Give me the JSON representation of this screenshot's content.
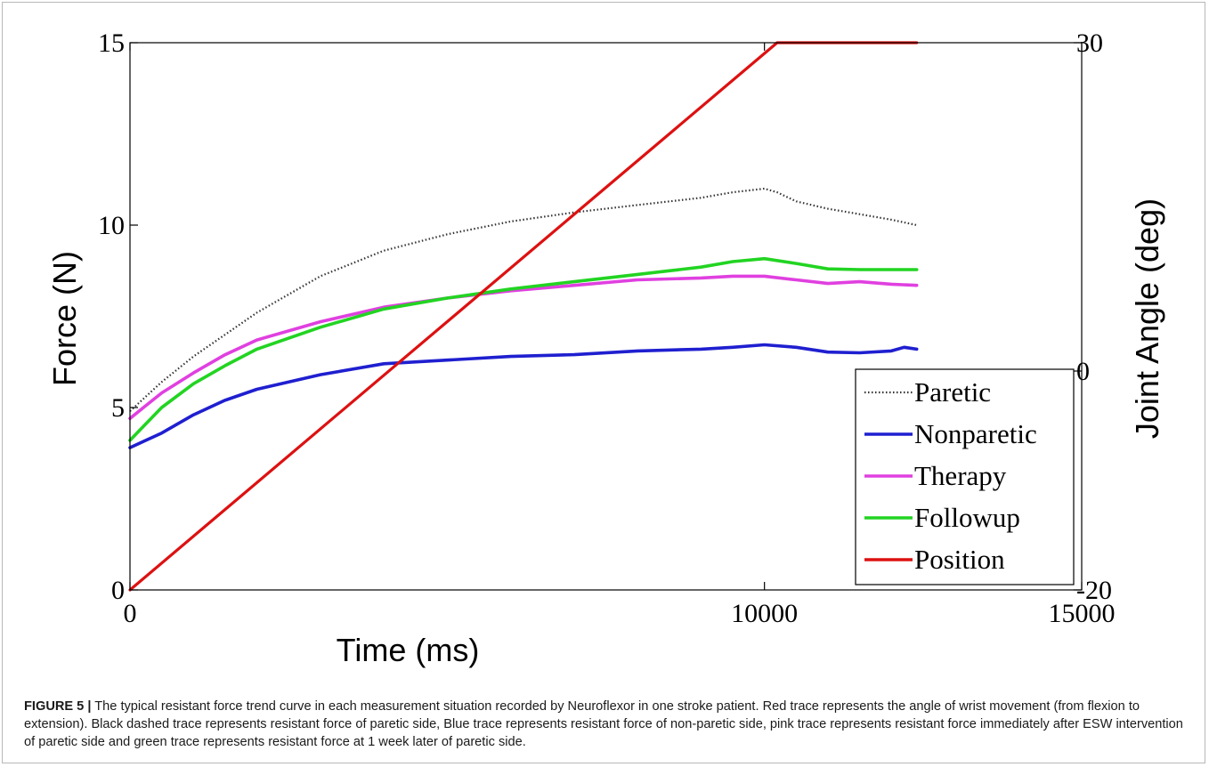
{
  "chart_data": {
    "type": "line",
    "xlabel": "Time (ms)",
    "ylabel": "Force (N)",
    "y2label": "Joint Angle (deg)",
    "xlim": [
      0,
      15000
    ],
    "ylim": [
      0,
      15
    ],
    "y2lim": [
      -20,
      30
    ],
    "xticks": [
      "0",
      "10000",
      "15000"
    ],
    "yticks": [
      "0",
      "5",
      "10",
      "15"
    ],
    "y2ticks": [
      "-20",
      "0",
      "30"
    ],
    "legend_position": "bottom-right",
    "series": [
      {
        "name": "Paretic",
        "axis": "left",
        "color": "#333333",
        "style": "dotted",
        "x": [
          0,
          250,
          500,
          1000,
          1500,
          2000,
          2500,
          3000,
          3500,
          4000,
          5000,
          6000,
          7000,
          8000,
          9000,
          9500,
          10000,
          10200,
          10500,
          11000,
          11500,
          12000,
          12400
        ],
        "y": [
          4.9,
          5.3,
          5.7,
          6.4,
          7.0,
          7.6,
          8.1,
          8.6,
          8.95,
          9.3,
          9.75,
          10.1,
          10.35,
          10.55,
          10.75,
          10.9,
          11.0,
          10.9,
          10.65,
          10.45,
          10.3,
          10.15,
          10.0
        ]
      },
      {
        "name": "Nonparetic",
        "axis": "left",
        "color": "#1f1fd0",
        "style": "solid",
        "x": [
          0,
          250,
          500,
          1000,
          1500,
          2000,
          3000,
          4000,
          5000,
          6000,
          7000,
          8000,
          9000,
          9500,
          10000,
          10500,
          11000,
          11500,
          12000,
          12200,
          12400
        ],
        "y": [
          3.9,
          4.1,
          4.3,
          4.8,
          5.2,
          5.5,
          5.9,
          6.2,
          6.3,
          6.4,
          6.45,
          6.55,
          6.6,
          6.65,
          6.72,
          6.65,
          6.52,
          6.5,
          6.55,
          6.65,
          6.6
        ]
      },
      {
        "name": "Therapy",
        "axis": "left",
        "color": "#e040e0",
        "style": "solid",
        "x": [
          0,
          250,
          500,
          1000,
          1500,
          2000,
          3000,
          4000,
          5000,
          6000,
          7000,
          8000,
          9000,
          9500,
          10000,
          10500,
          11000,
          11500,
          12000,
          12400
        ],
        "y": [
          4.7,
          5.05,
          5.4,
          5.95,
          6.45,
          6.85,
          7.35,
          7.75,
          8.0,
          8.2,
          8.35,
          8.5,
          8.55,
          8.6,
          8.6,
          8.5,
          8.4,
          8.45,
          8.38,
          8.35
        ]
      },
      {
        "name": "Followup",
        "axis": "left",
        "color": "#22d422",
        "style": "solid",
        "x": [
          0,
          250,
          500,
          1000,
          1500,
          2000,
          3000,
          4000,
          5000,
          6000,
          7000,
          8000,
          8500,
          9000,
          9500,
          10000,
          10500,
          11000,
          11500,
          12000,
          12400
        ],
        "y": [
          4.1,
          4.55,
          5.0,
          5.65,
          6.15,
          6.6,
          7.2,
          7.7,
          8.0,
          8.25,
          8.45,
          8.65,
          8.75,
          8.85,
          9.0,
          9.08,
          8.95,
          8.8,
          8.78,
          8.78,
          8.78
        ]
      },
      {
        "name": "Position",
        "axis": "right",
        "color": "#dd1111",
        "style": "solid",
        "x": [
          0,
          10200,
          12400
        ],
        "y": [
          -20,
          30,
          30
        ]
      }
    ]
  },
  "caption": {
    "label": "FIGURE 5 |",
    "text": " The typical resistant force trend curve in each measurement situation recorded by Neuroflexor in one stroke patient. Red trace represents the angle of wrist movement (from flexion to extension). Black dashed trace represents resistant force of paretic side, Blue trace represents resistant force of non-paretic side, pink trace represents resistant force immediately after ESW intervention of paretic side and green trace represents resistant force at 1 week later of paretic side."
  }
}
